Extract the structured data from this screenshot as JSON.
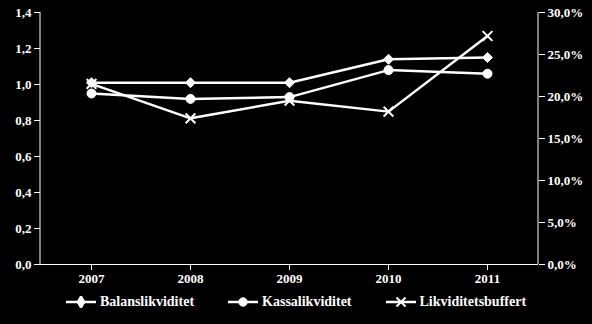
{
  "chart_data": {
    "type": "line",
    "categories": [
      "2007",
      "2008",
      "2009",
      "2010",
      "2011"
    ],
    "series": [
      {
        "name": "Balanslikviditet",
        "color": "#ffffff",
        "marker": "diamond",
        "values": [
          1.01,
          1.01,
          1.01,
          1.14,
          1.15
        ]
      },
      {
        "name": "Kassalikviditet",
        "color": "#ffffff",
        "marker": "circle",
        "values": [
          0.95,
          0.92,
          0.93,
          1.08,
          1.06
        ]
      },
      {
        "name": "Likviditetsbuffert",
        "color": "#ffffff",
        "marker": "times",
        "axis": "y2",
        "values": [
          21.5,
          17.4,
          19.5,
          18.2,
          27.2
        ]
      }
    ],
    "ylim": [
      0,
      1.4
    ],
    "yticks": [
      {
        "value": 0,
        "label": "0,0"
      },
      {
        "value": 0.2,
        "label": "0,2"
      },
      {
        "value": 0.4,
        "label": "0,4"
      },
      {
        "value": 0.6,
        "label": "0,6"
      },
      {
        "value": 0.8,
        "label": "0,8"
      },
      {
        "value": 1,
        "label": "1,0"
      },
      {
        "value": 1.2,
        "label": "1,2"
      },
      {
        "value": 1.4,
        "label": "1,4"
      }
    ],
    "y2lim": [
      0,
      30
    ],
    "y2ticks": [
      {
        "value": 0,
        "label": "0,0%"
      },
      {
        "value": 5,
        "label": "5,0%"
      },
      {
        "value": 10,
        "label": "10,0%"
      },
      {
        "value": 15,
        "label": "15,0%"
      },
      {
        "value": 20,
        "label": "20,0%"
      },
      {
        "value": 25,
        "label": "25,0%"
      },
      {
        "value": 30,
        "label": "30,0%"
      }
    ],
    "grid": false,
    "legend": "bottom"
  }
}
